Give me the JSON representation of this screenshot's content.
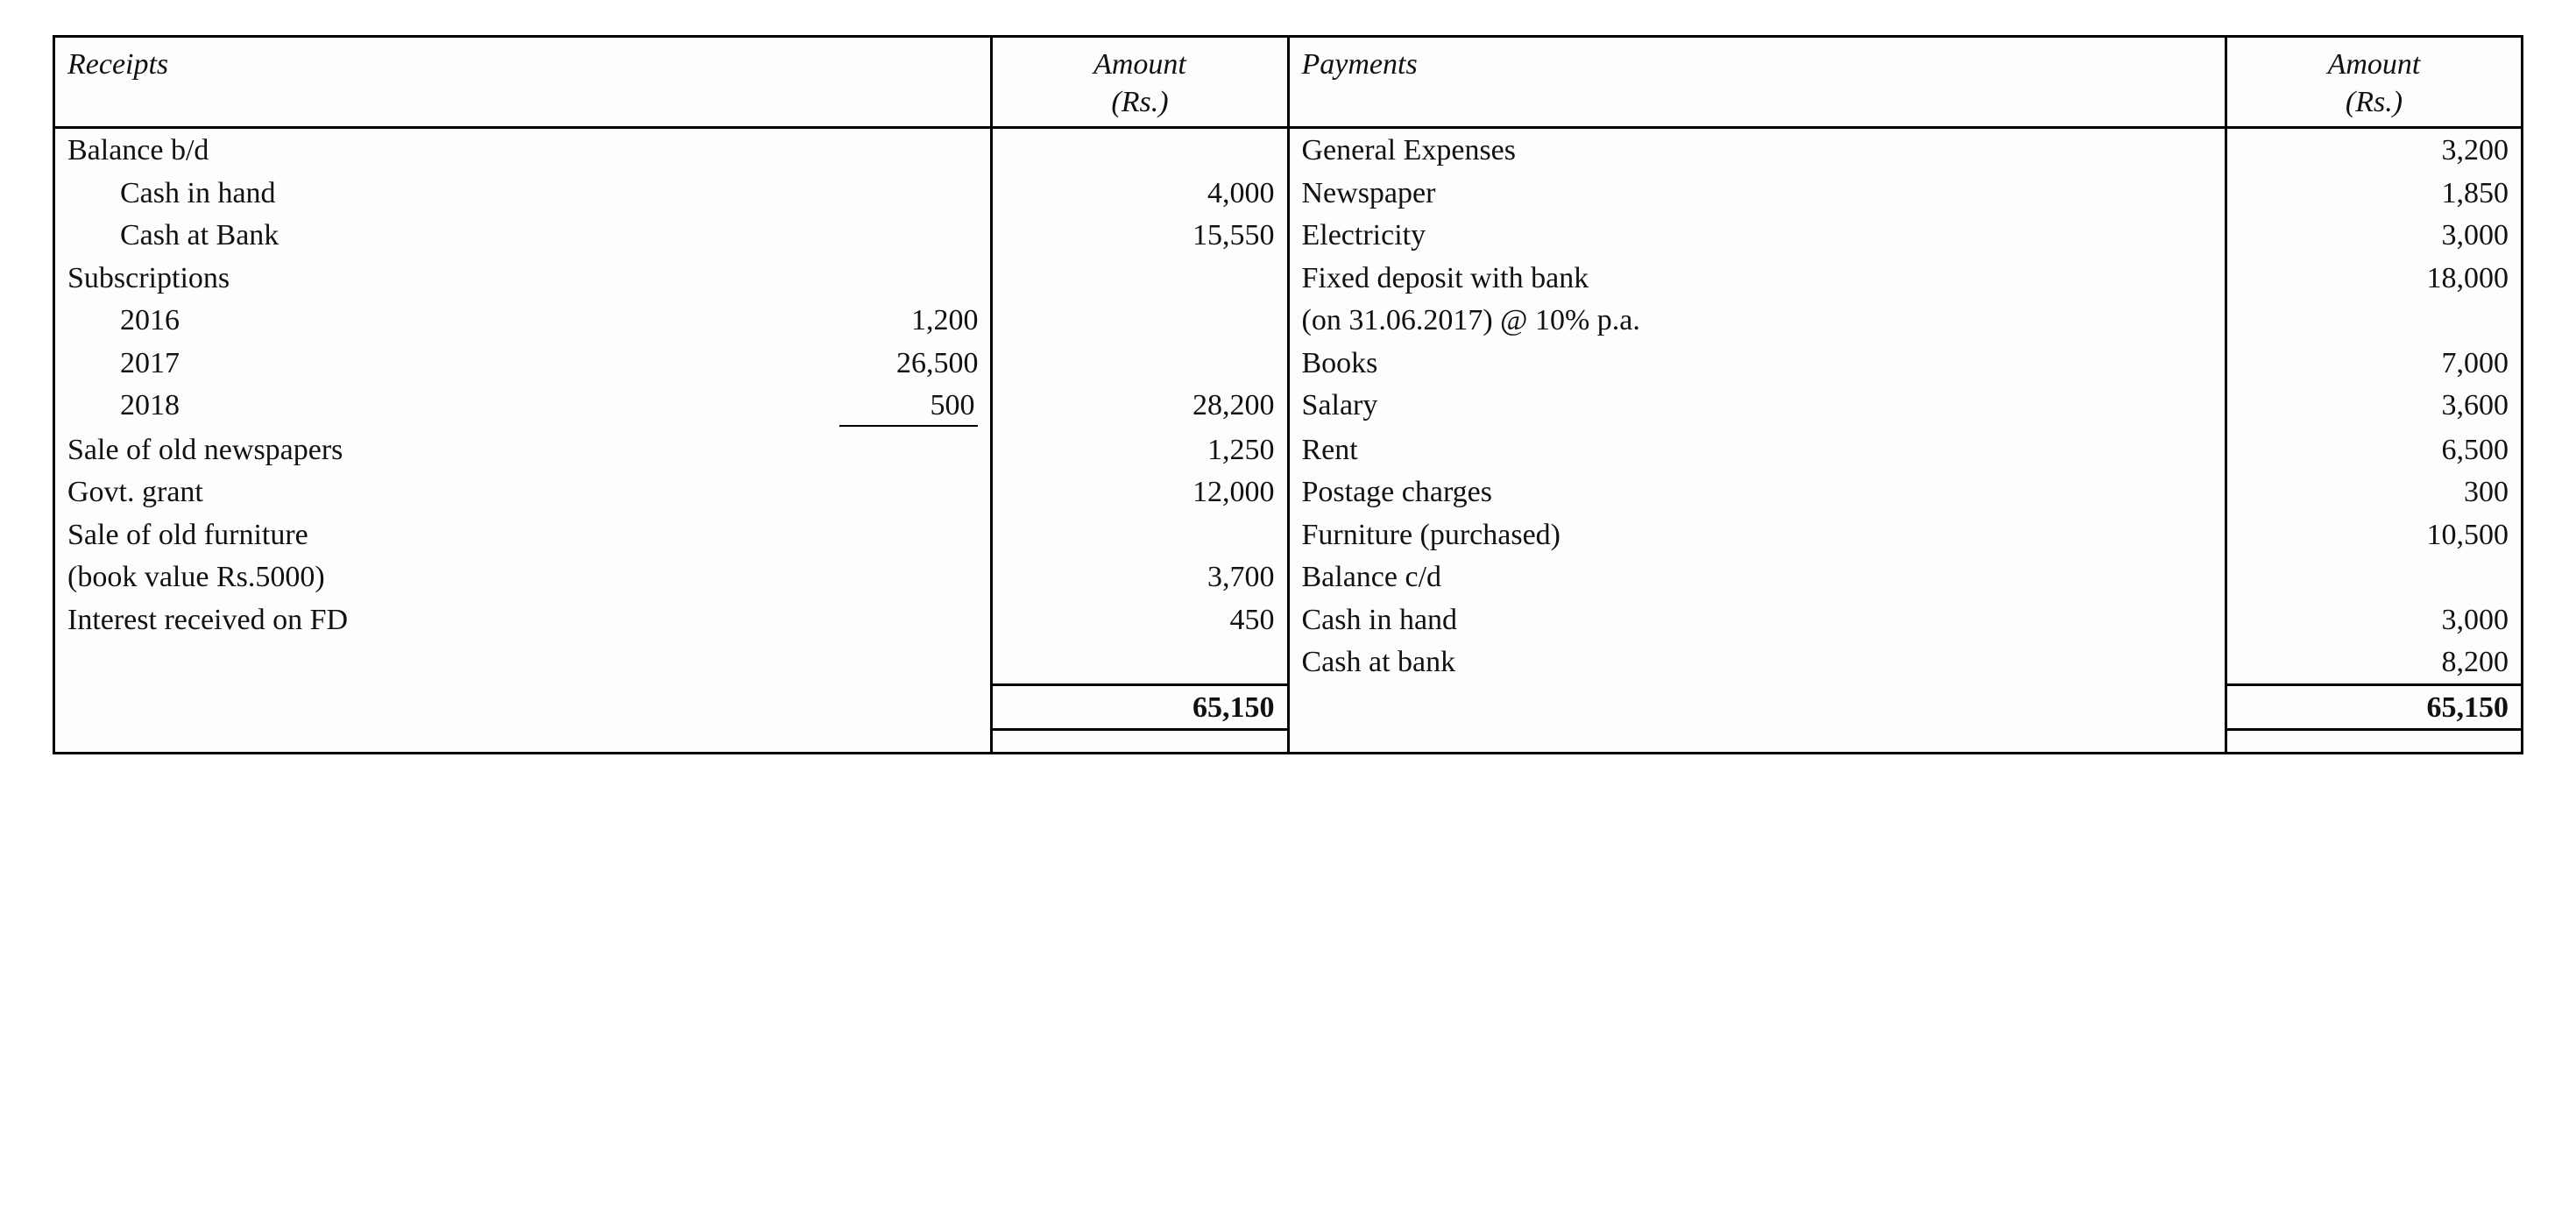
{
  "headers": {
    "receipts": "Receipts",
    "amount1": "Amount",
    "amount1_unit": "(Rs.)",
    "payments": "Payments",
    "amount2": "Amount",
    "amount2_unit": "(Rs.)"
  },
  "receipts": {
    "balance_bd": "Balance b/d",
    "cash_in_hand_label": "Cash in hand",
    "cash_in_hand_val": "4,000",
    "cash_at_bank_label": "Cash at Bank",
    "cash_at_bank_val": "15,550",
    "subscriptions": "Subscriptions",
    "sub_2016_label": "2016",
    "sub_2016_val": "1,200",
    "sub_2017_label": "2017",
    "sub_2017_val": "26,500",
    "sub_2018_label": "2018",
    "sub_2018_val": "500",
    "subscriptions_total": "28,200",
    "sale_newspapers_label": "Sale of old newspapers",
    "sale_newspapers_val": "1,250",
    "govt_grant_label": "Govt. grant",
    "govt_grant_val": "12,000",
    "sale_furniture_label1": "Sale of old furniture",
    "sale_furniture_label2": "(book value Rs.5000)",
    "sale_furniture_val": "3,700",
    "interest_fd_label": "Interest received on FD",
    "interest_fd_val": "450"
  },
  "payments": {
    "general_expenses_label": "General Expenses",
    "general_expenses_val": "3,200",
    "newspaper_label": "Newspaper",
    "newspaper_val": "1,850",
    "electricity_label": "Electricity",
    "electricity_val": "3,000",
    "fd_label1": "Fixed deposit with bank",
    "fd_label2": "(on 31.06.2017) @ 10% p.a.",
    "fd_val": "18,000",
    "books_label": "Books",
    "books_val": "7,000",
    "salary_label": "Salary",
    "salary_val": "3,600",
    "rent_label": "Rent",
    "rent_val": "6,500",
    "postage_label": "Postage charges",
    "postage_val": "300",
    "furniture_label": "Furniture (purchased)",
    "furniture_val": "10,500",
    "balance_cd": "Balance c/d",
    "cash_in_hand_label": "Cash in hand",
    "cash_in_hand_val": "3,000",
    "cash_at_bank_label": "Cash at bank",
    "cash_at_bank_val": "8,200"
  },
  "totals": {
    "left": "65,150",
    "right": "65,150"
  },
  "styling": {
    "border_color": "#000000",
    "background": "#fdfdfc",
    "text_color": "#111111",
    "font_family": "Bookman Old Style serif",
    "header_style": "italic",
    "font_size_pt": 26,
    "column_widths_pct": [
      38,
      12,
      38,
      12
    ],
    "number_align": "right",
    "total_weight": "bold",
    "underline_last_sub": true
  }
}
